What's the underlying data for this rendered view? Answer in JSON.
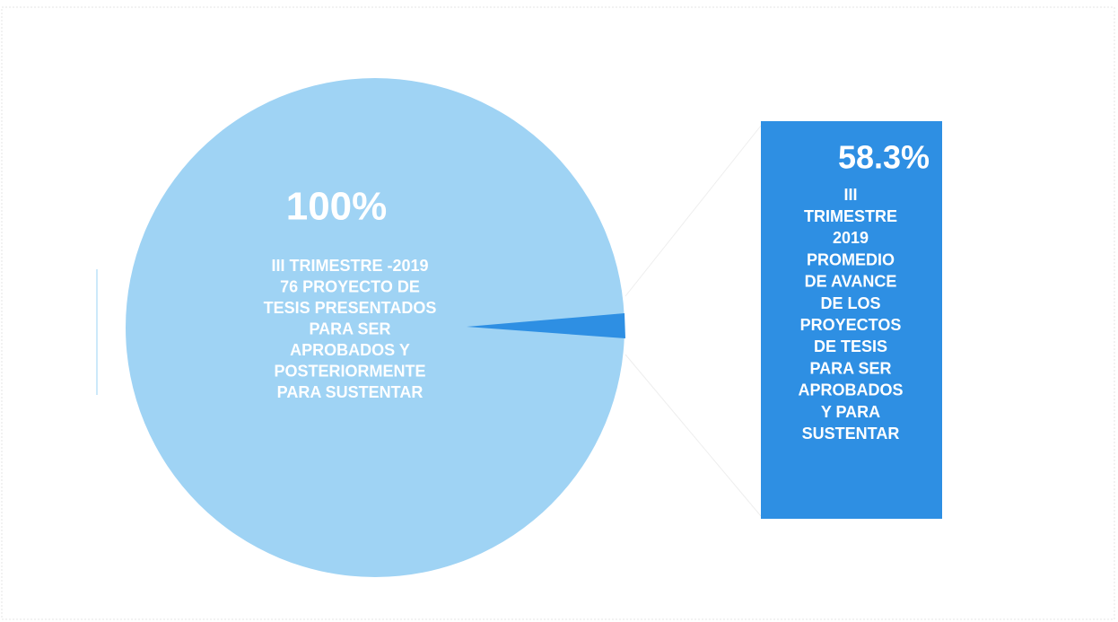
{
  "chart_data": {
    "type": "pie",
    "slices": [
      {
        "value": 100,
        "value_label": "100%",
        "color": "#9fd3f4",
        "text": [
          "III TRIMESTRE -2019",
          "76 PROYECTO DE",
          "TESIS PRESENTADOS",
          "PARA SER",
          "APROBADOS Y",
          "POSTERIORMENTE",
          "PARA SUSTENTAR"
        ]
      }
    ],
    "callout": {
      "value": 58.3,
      "value_label": "58.3%",
      "color": "#2e8fe3",
      "text": [
        "III",
        "TRIMESTRE",
        "2019",
        "PROMEDIO",
        "DE AVANCE",
        "DE LOS",
        "PROYECTOS",
        "DE TESIS",
        "PARA SER",
        "APROBADOS",
        "Y PARA",
        "SUSTENTAR"
      ]
    }
  }
}
